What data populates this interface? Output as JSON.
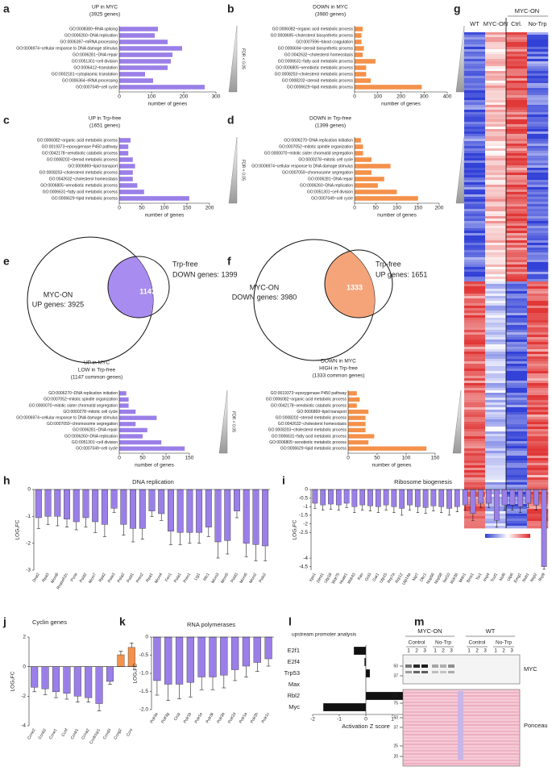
{
  "chart_data": [
    {
      "panel": "a",
      "type": "hbar",
      "title_lines": [
        "UP in MYC",
        "(3925 genes)"
      ],
      "categories": [
        "GO:0008380~RNA splicing",
        "GO:0006260~DNA replication",
        "GO:0006397~mRNA processing",
        "GO:0006974~cellular response to DNA damage stimulus",
        "GO:0006281~DNA repair",
        "GO:0051301~cell division",
        "GO:0006412~translation",
        "GO:0002181~cytoplasmic translation",
        "GO:0006364~rRNA processing",
        "GO:0007049~cell cycle"
      ],
      "values": [
        120,
        110,
        150,
        195,
        165,
        160,
        150,
        80,
        105,
        265
      ],
      "color": "#9b7fe8",
      "xlim": [
        0,
        300
      ],
      "xticks": [
        0,
        100,
        200,
        300
      ],
      "xlabel": "number of genes",
      "side_label": "FDR < 0.05"
    },
    {
      "panel": "b",
      "type": "hbar",
      "title_lines": [
        "DOWN in MYC",
        "(3980 genes)"
      ],
      "categories": [
        "GO:0006082~organic acid metabolic process",
        "GO:0008695~cholesterol biosynthetic process",
        "GO:0007596~blood coagulation",
        "GO:0006694~steroid biosynthetic process",
        "GO:0042632~cholesterol homeostasis",
        "GO:0006631~fatty acid metabolic process",
        "GO:0006805~xenobiotic metabolic process",
        "GO:0008203~cholesterol metabolic process",
        "GO:0008202~steroid metabolic process",
        "GO:0006629~lipid metabolic process"
      ],
      "values": [
        35,
        30,
        30,
        40,
        35,
        90,
        50,
        50,
        70,
        290
      ],
      "color": "#f4914a",
      "xlim": [
        0,
        400
      ],
      "xticks": [
        0,
        100,
        200,
        300,
        400
      ],
      "xlabel": "number of genes",
      "side_label": "FDR < 0.05"
    },
    {
      "panel": "c",
      "type": "hbar",
      "title_lines": [
        "UP in Trp-free",
        "(1651 genes)"
      ],
      "categories": [
        "GO:0006082~organic acid metabolic process",
        "GO:0019373~epoxygenase P450 pathway",
        "GO:0042178~xenobiotic catabolic process",
        "GO:0008202~steroid metabolic process",
        "GO:0006869~lipid transport",
        "GO:0008203~cholesterol metabolic process",
        "GO:0042632~cholesterol homeostasis",
        "GO:0006805~xenobiotic metabolic process",
        "GO:0006631~fatty acid metabolic process",
        "GO:0006629~lipid metabolic process"
      ],
      "values": [
        25,
        20,
        20,
        30,
        35,
        30,
        30,
        40,
        55,
        155
      ],
      "color": "#9b7fe8",
      "xlim": [
        0,
        200
      ],
      "xticks": [
        0,
        50,
        100,
        150,
        200
      ],
      "xlabel": "number of genes",
      "side_label": "FDR < 0.05"
    },
    {
      "panel": "d",
      "type": "hbar",
      "title_lines": [
        "DOWN in Trp-free",
        "(1399 genes)"
      ],
      "categories": [
        "GO:0006270~DNA replication initiation",
        "GO:0007052~mitotic spindle organization",
        "GO:0000070~mitotic sister chromatid segregation",
        "GO:0000278~mitotic cell cycle",
        "GO:0006974~cellular response to DNA damage stimulus",
        "GO:0007059~chromosome segregation",
        "GO:0006281~DNA repair",
        "GO:0006260~DNA replication",
        "GO:0051301~cell division",
        "GO:0007049~cell cycle"
      ],
      "values": [
        15,
        20,
        20,
        40,
        85,
        40,
        70,
        55,
        100,
        150
      ],
      "color": "#f4914a",
      "xlim": [
        0,
        200
      ],
      "xticks": [
        0,
        50,
        100,
        150,
        200
      ],
      "xlabel": "number of genes",
      "side_label": "FDR < 0.05"
    },
    {
      "panel": "e",
      "type": "venn",
      "sets": [
        {
          "name": "MYC-ON",
          "label": "UP genes: 3925"
        },
        {
          "name": "Trp-free",
          "label": "DOWN genes: 1399"
        }
      ],
      "overlap": 1147,
      "color": "#a98cf0"
    },
    {
      "type": "hbar",
      "title_lines": [
        "UP in MYC",
        "LOW in Trp-free",
        "(1147 common genes)"
      ],
      "categories": [
        "GO:0006270~DNA replication initiation",
        "GO:0007052~mitotic spindle organization",
        "GO:0000070~mitotic sister chromatid segregation",
        "GO:0000278~mitotic cell cycle",
        "GO:0006974~cellular response to DNA damage stimulus",
        "GO:0007059~chromosome segregation",
        "GO:0006281~DNA repair",
        "GO:0006260~DNA replication",
        "GO:0051301~cell division",
        "GO:0007049~cell cycle"
      ],
      "values": [
        15,
        20,
        20,
        35,
        80,
        35,
        60,
        50,
        90,
        140
      ],
      "color": "#9b7fe8",
      "xlim": [
        0,
        150
      ],
      "xticks": [
        0,
        50,
        100,
        150
      ],
      "xlabel": "number of genes",
      "side_label": "FDR < 0.05"
    },
    {
      "panel": "f",
      "type": "venn",
      "sets": [
        {
          "name": "MYC-ON",
          "label": "DOWN genes: 3980"
        },
        {
          "name": "Trp-free",
          "label": "UP genes: 1651"
        }
      ],
      "overlap": 1333,
      "color": "#f5a47a"
    },
    {
      "type": "hbar",
      "title_lines": [
        "DOWN in MYC",
        "HIGH in Trp-free",
        "(1333 common genes)"
      ],
      "categories": [
        "GO:0019373~epoxygenase P450 pathway",
        "GO:0006082~organic acid metabolic process",
        "GO:0042178~xenobiotic catabolic process",
        "GO:0006869~lipid transport",
        "GO:0008202~steroid metabolic process",
        "GO:0042632~cholesterol homeostasis",
        "GO:0008203~cholesterol metabolic process",
        "GO:0006631~fatty acid metabolic process",
        "GO:0006805~xenobiotic metabolic process",
        "GO:0006629~lipid metabolic process"
      ],
      "values": [
        15,
        20,
        15,
        35,
        30,
        30,
        30,
        45,
        35,
        135
      ],
      "color": "#f4914a",
      "xlim": [
        0,
        150
      ],
      "xticks": [
        0,
        50,
        100,
        150
      ],
      "xlabel": "number of genes",
      "side_label": "FDR < 0.05"
    },
    {
      "panel": "g",
      "type": "heatmap",
      "group": "MYC-ON",
      "columns": [
        "WT",
        "MYC-ON",
        "Ctrl.",
        "No-Trp"
      ]
    },
    {
      "panel": "h",
      "type": "bar",
      "title": "DNA replication",
      "ylabel": "LOG₂FC",
      "categories": [
        "Dna2",
        "Rpa3",
        "Mcm8",
        "Rnaseh2c",
        "Pcna",
        "Pold2",
        "Mcm7",
        "Rpa2",
        "Pole3",
        "Pola2",
        "Pold1",
        "Prim2",
        "Rpa1",
        "Mcm4",
        "Fen1",
        "Pola1",
        "Prim1",
        "Lig1",
        "Rfc1",
        "Mcm3",
        "Mcm5",
        "Pold3",
        "Mcm6",
        "Mcm2",
        "Pole2"
      ],
      "values": [
        -1.05,
        -1.0,
        -1.0,
        -1.1,
        -1.2,
        -1.05,
        -1.2,
        -1.3,
        -0.7,
        -1.3,
        -1.45,
        -1.45,
        -0.8,
        -0.9,
        -1.55,
        -1.6,
        -1.6,
        -1.6,
        -1.4,
        -1.95,
        -1.9,
        -0.8,
        -2.0,
        -2.05,
        -2.1
      ],
      "errors": [
        0.4,
        0.3,
        0.35,
        0.3,
        0.3,
        0.35,
        0.4,
        0.45,
        0.15,
        0.4,
        0.5,
        0.4,
        0.2,
        0.25,
        0.5,
        0.45,
        0.4,
        0.4,
        0.35,
        0.6,
        0.5,
        0.25,
        0.5,
        0.6,
        0.55
      ],
      "color": "#9b7fe8",
      "ylim": [
        -3,
        0
      ],
      "yticks": [
        0,
        -1,
        -2,
        -3
      ]
    },
    {
      "panel": "i",
      "type": "bar",
      "title": "Ribosome biogenesis",
      "ylabel": "LOG₂FC",
      "categories": [
        "Xpo1",
        "Dimt1",
        "Utp18",
        "Wdr75",
        "Heatr1",
        "Wdr43",
        "Ran",
        "Gnl3",
        "Gar1",
        "Utp15",
        "Rrp7a",
        "Rrp12",
        "Utp14a",
        "Nip7",
        "Dkc1",
        "Nop56",
        "Nop58",
        "Nol10",
        "Wdr36",
        "Mdn1",
        "Bms1",
        "Tsr1",
        "Imp4",
        "Tcof1",
        "Nol6",
        "Utp6",
        "Emg1",
        "Nob1",
        "Nop2",
        "Rrp9"
      ],
      "values": [
        -0.8,
        -0.9,
        -0.85,
        -0.9,
        -0.8,
        -1.0,
        -0.9,
        -0.95,
        -1.0,
        -0.9,
        -1.0,
        -1.1,
        -0.9,
        -1.0,
        -1.05,
        -0.95,
        -1.0,
        -1.1,
        -1.0,
        -0.9,
        -1.4,
        -0.8,
        -0.8,
        -1.8,
        -0.9,
        -0.9,
        -1.0,
        -0.8,
        -0.9,
        -4.5
      ],
      "errors": [
        0.3,
        0.3,
        0.3,
        0.3,
        0.25,
        0.35,
        0.3,
        0.3,
        0.35,
        0.3,
        0.35,
        0.4,
        0.3,
        0.35,
        0.35,
        0.3,
        0.35,
        0.4,
        0.3,
        0.3,
        0.4,
        0.25,
        0.25,
        0.4,
        0.3,
        0.3,
        0.35,
        0.25,
        0.3,
        0.15
      ],
      "color": "#9b7fe8",
      "ylim": [
        -4.7,
        0
      ],
      "yticks": [
        0,
        -0.5,
        -1,
        -1.5,
        -2,
        -2.5,
        -4,
        -4.5
      ]
    },
    {
      "panel": "j",
      "type": "bar",
      "title": "Cyclin genes",
      "ylabel": "LOG₂FC",
      "categories": [
        "Ccne2",
        "Ccnb2",
        "Ccne1",
        "Ccnf",
        "Ccnb1",
        "Ccna2",
        "Ccnb1ip1",
        "Ccnd3",
        "Ccng2",
        "Ccni"
      ],
      "values": [
        -1.4,
        -1.5,
        -1.7,
        -1.8,
        -2.0,
        -2.1,
        -2.5,
        -1.0,
        0.8,
        1.3
      ],
      "errors": [
        0.3,
        0.4,
        0.4,
        0.4,
        0.4,
        0.3,
        0.5,
        0.2,
        0.25,
        0.3
      ],
      "color": "#9b7fe8",
      "positive_color": "#f4914a",
      "ylim": [
        -4,
        2
      ],
      "yticks": [
        2,
        0,
        -2,
        -4
      ]
    },
    {
      "panel": "k",
      "type": "bar",
      "title": "RNA polymerases",
      "ylabel": "LOG₂FC",
      "categories": [
        "Polr3e",
        "Polr3g",
        "Crcp",
        "Polr1b",
        "Polr1e",
        "Polr3k",
        "Polr3b",
        "Polr2d",
        "Polr1a",
        "Polr2h",
        "Polr1c"
      ],
      "values": [
        -1.2,
        -1.3,
        -1.3,
        -1.25,
        -1.1,
        -1.1,
        -1.05,
        -0.9,
        -0.8,
        -0.7,
        -0.6
      ],
      "errors": [
        0.4,
        0.45,
        0.4,
        0.4,
        0.35,
        0.35,
        0.35,
        0.3,
        0.3,
        0.25,
        0.2
      ],
      "color": "#9b7fe8",
      "ylim": [
        -2,
        0
      ],
      "yticks": [
        0,
        -0.5,
        {
          "value": -1,
          "label": "-1.0"
        },
        -1.5,
        {
          "value": -2,
          "label": "-2.0"
        }
      ]
    },
    {
      "panel": "l",
      "type": "hbar",
      "title_lines": [
        "upstream promoter analysis"
      ],
      "categories": [
        "E2f1",
        "E2f4",
        "Trp53",
        "Max",
        "Rbl2",
        "Myc"
      ],
      "values": [
        -0.45,
        -0.05,
        0.15,
        0,
        1.4,
        -1.6
      ],
      "color": "#111111",
      "xlim": [
        -2,
        2
      ],
      "xticks": [
        -2,
        -1,
        0,
        1,
        2
      ],
      "xlabel": "Activation Z score"
    },
    {
      "panel": "m",
      "type": "blot",
      "groups": [
        "MYC-ON",
        "WT"
      ],
      "conditions": [
        "Control",
        "No-Trp"
      ],
      "lanes": [
        "1",
        "2",
        "3"
      ],
      "bands": [
        "MYC",
        "Ponceau"
      ],
      "mw_top": [
        50,
        37
      ],
      "mw_bottom": [
        100,
        75,
        50,
        37,
        25,
        20
      ]
    }
  ]
}
